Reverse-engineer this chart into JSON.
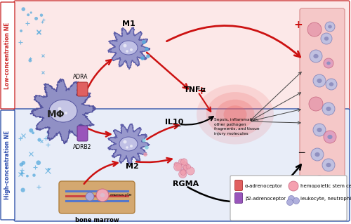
{
  "bg_top_color": "#fce8e8",
  "bg_bot_color": "#e8edf8",
  "side_label_low": "Low-concentration NE",
  "side_label_high": "High-concentration NE",
  "label_ADRA": "ADRA",
  "label_ADRB2": "ADRB2",
  "label_M1": "M1",
  "label_M2": "M2",
  "label_MPhi": "MΦ",
  "label_TNFa": "TNFα",
  "label_IL10": "IL10",
  "label_RGMA": "RGMA",
  "label_monocyte": "monocyte",
  "label_bone": "bone marrow",
  "label_sepsis": "Sepsis, inflammation;\nother pathogen\nfragments, and tissue\ninjury molecules",
  "legend_alpha": "α-adrenoceptor",
  "legend_beta": "β2-adrenoceptor",
  "legend_hemo": "hemopoietic stem cells",
  "legend_leuko": "leukocyte, neutrophil",
  "red": "#cc1111",
  "blue_dot": "#55aadd",
  "pink_dot": "#e888aa",
  "cell_fill": "#9898cc",
  "cell_edge": "#6666aa",
  "cell_nuc": "#c0c0e8",
  "adra_color": "#e06060",
  "adrb2_color": "#9955bb",
  "vessel_fill": "#f5c8c8",
  "vessel_edge": "#dd9999",
  "infl_color": "#f5a0a0",
  "bone_fill": "#d4a870",
  "bone_edge": "#b08040"
}
